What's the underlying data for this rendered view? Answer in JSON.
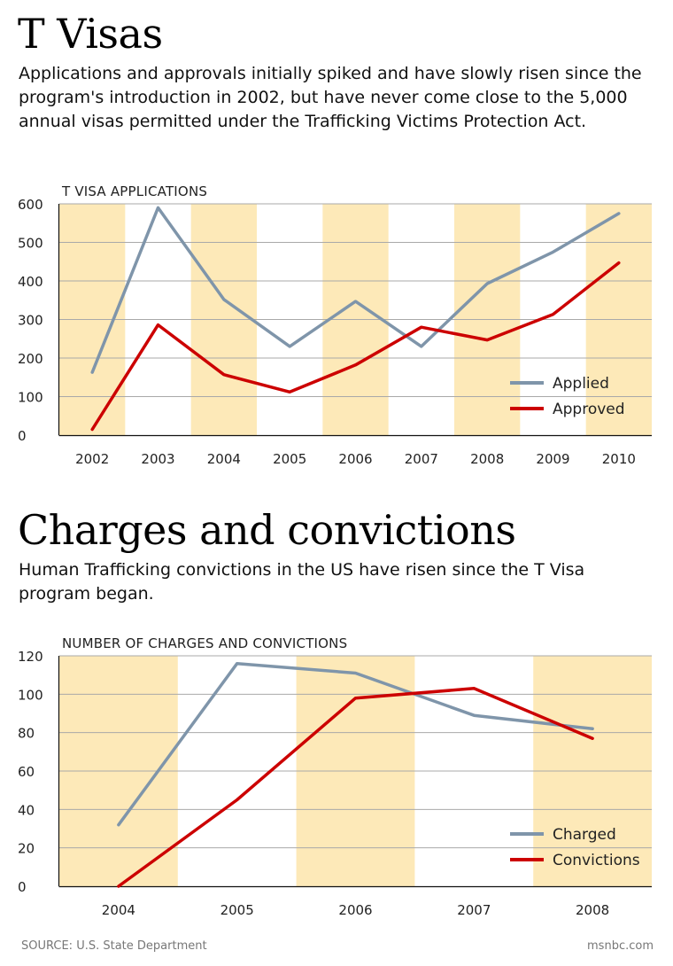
{
  "section1": {
    "title": "T Visas",
    "description": "Applications and approvals initially spiked and have slowly risen since the program's introduction in 2002, but have never come close to the 5,000 annual visas permitted under the Trafficking Victims Protection Act."
  },
  "section2": {
    "title": "Charges and convictions",
    "description": "Human Trafficking convictions in the US have risen since the T Visa program began."
  },
  "footer": {
    "source": "SOURCE: U.S. State Department",
    "credit": "msnbc.com"
  },
  "colors": {
    "band": "#fde9b8",
    "series_gray": "#7f95aa",
    "series_red": "#cc0000",
    "grid": "#a9a9a9"
  },
  "chart_data": [
    {
      "type": "line",
      "title": "T VISA APPLICATIONS",
      "categories": [
        "2002",
        "2003",
        "2004",
        "2005",
        "2006",
        "2007",
        "2008",
        "2009",
        "2010"
      ],
      "series": [
        {
          "name": "Applied",
          "values": [
            163,
            590,
            352,
            230,
            347,
            230,
            393,
            475,
            575
          ]
        },
        {
          "name": "Approved",
          "values": [
            15,
            286,
            157,
            112,
            182,
            280,
            247,
            313,
            447
          ]
        }
      ],
      "ylim": [
        0,
        600
      ],
      "yticks": [
        0,
        100,
        200,
        300,
        400,
        500,
        600
      ],
      "grid": true,
      "legend_position": "bottom-right",
      "banded_categories": [
        "2002",
        "2004",
        "2006",
        "2008",
        "2010"
      ]
    },
    {
      "type": "line",
      "title": "NUMBER OF CHARGES AND CONVICTIONS",
      "categories": [
        "2004",
        "2005",
        "2006",
        "2007",
        "2008"
      ],
      "series": [
        {
          "name": "Charged",
          "values": [
            32,
            116,
            111,
            89,
            82
          ]
        },
        {
          "name": "Convictions",
          "values": [
            0,
            45,
            98,
            103,
            77
          ]
        }
      ],
      "ylim": [
        0,
        120
      ],
      "yticks": [
        0,
        20,
        40,
        60,
        80,
        100,
        120
      ],
      "grid": true,
      "legend_position": "bottom-right",
      "banded_categories": [
        "2004",
        "2006",
        "2008"
      ]
    }
  ]
}
